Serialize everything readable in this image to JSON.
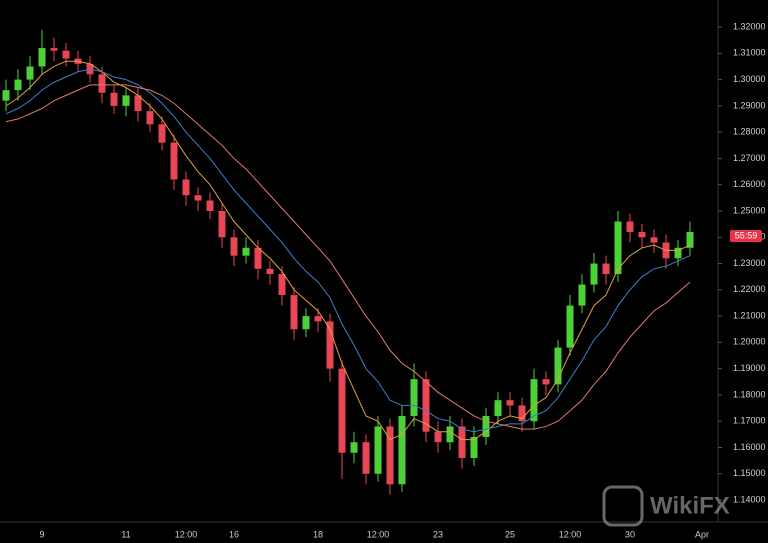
{
  "chart_data": {
    "type": "candlestick",
    "categories": [
      null,
      null,
      null,
      "9",
      null,
      null,
      null,
      null,
      null,
      null,
      "11",
      null,
      null,
      null,
      null,
      "12:00",
      null,
      null,
      null,
      "16",
      null,
      null,
      null,
      null,
      null,
      null,
      "18",
      null,
      null,
      null,
      null,
      "12:00",
      null,
      null,
      null,
      null,
      "23",
      null,
      null,
      null,
      null,
      null,
      "25",
      null,
      null,
      null,
      null,
      "12:00",
      null,
      null,
      null,
      null,
      "30",
      null,
      null,
      null,
      null,
      null,
      "Apr"
    ],
    "open": [
      1.292,
      1.296,
      1.3,
      1.305,
      1.312,
      1.311,
      1.308,
      1.306,
      1.302,
      1.295,
      1.29,
      1.294,
      1.288,
      1.283,
      1.276,
      1.262,
      1.256,
      1.254,
      1.25,
      1.24,
      1.233,
      1.236,
      1.228,
      1.226,
      1.218,
      1.205,
      1.21,
      1.208,
      1.19,
      1.158,
      1.162,
      1.15,
      1.168,
      1.146,
      1.172,
      1.186,
      1.166,
      1.162,
      1.168,
      1.156,
      1.164,
      1.172,
      1.178,
      1.176,
      1.17,
      1.186,
      1.184,
      1.198,
      1.214,
      1.222,
      1.23,
      1.226,
      1.246,
      1.242,
      1.24,
      1.238,
      1.232,
      1.236,
      null
    ],
    "high": [
      1.3,
      1.304,
      1.309,
      1.319,
      1.316,
      1.314,
      1.311,
      1.309,
      1.305,
      1.298,
      1.297,
      1.297,
      1.291,
      1.286,
      1.279,
      1.265,
      1.259,
      1.257,
      1.253,
      1.243,
      1.24,
      1.239,
      1.231,
      1.229,
      1.221,
      1.213,
      1.213,
      1.211,
      1.193,
      1.166,
      1.165,
      1.172,
      1.171,
      1.176,
      1.192,
      1.189,
      1.17,
      1.172,
      1.171,
      1.168,
      1.175,
      1.181,
      1.181,
      1.179,
      1.19,
      1.189,
      1.201,
      1.218,
      1.226,
      1.234,
      1.233,
      1.25,
      1.249,
      1.245,
      1.243,
      1.241,
      1.239,
      1.246,
      null
    ],
    "low": [
      1.288,
      1.292,
      1.296,
      1.302,
      1.307,
      1.305,
      1.303,
      1.299,
      1.291,
      1.287,
      1.286,
      1.284,
      1.28,
      1.273,
      1.258,
      1.252,
      1.25,
      1.247,
      1.236,
      1.229,
      1.23,
      1.224,
      1.222,
      1.214,
      1.201,
      1.202,
      1.204,
      1.185,
      1.148,
      1.154,
      1.146,
      1.147,
      1.142,
      1.143,
      1.168,
      1.162,
      1.158,
      1.159,
      1.152,
      1.153,
      1.161,
      1.169,
      1.172,
      1.166,
      1.167,
      1.18,
      1.181,
      1.195,
      1.211,
      1.219,
      1.222,
      1.223,
      1.238,
      1.236,
      1.234,
      1.228,
      1.229,
      1.233,
      null
    ],
    "close": [
      1.296,
      1.3,
      1.305,
      1.312,
      1.311,
      1.308,
      1.306,
      1.302,
      1.295,
      1.29,
      1.294,
      1.288,
      1.283,
      1.276,
      1.262,
      1.256,
      1.254,
      1.25,
      1.24,
      1.233,
      1.236,
      1.228,
      1.226,
      1.218,
      1.205,
      1.21,
      1.208,
      1.19,
      1.158,
      1.162,
      1.15,
      1.168,
      1.146,
      1.172,
      1.186,
      1.166,
      1.162,
      1.168,
      1.156,
      1.164,
      1.172,
      1.178,
      1.176,
      1.17,
      1.186,
      1.184,
      1.198,
      1.214,
      1.222,
      1.23,
      1.226,
      1.246,
      1.242,
      1.24,
      1.238,
      1.232,
      1.236,
      1.242,
      null
    ],
    "up_color": "#4cd137",
    "down_color": "#e84557",
    "series": [
      {
        "color": "#e0a040",
        "values": [
          1.29,
          1.293,
          1.297,
          1.302,
          1.305,
          1.307,
          1.307,
          1.306,
          1.303,
          1.299,
          1.297,
          1.294,
          1.29,
          1.285,
          1.278,
          1.271,
          1.265,
          1.26,
          1.253,
          1.246,
          1.241,
          1.236,
          1.232,
          1.227,
          1.22,
          1.216,
          1.212,
          1.205,
          1.192,
          1.182,
          1.172,
          1.17,
          1.163,
          1.165,
          1.171,
          1.169,
          1.166,
          1.166,
          1.163,
          1.163,
          1.166,
          1.17,
          1.172,
          1.171,
          1.176,
          1.179,
          1.186,
          1.196,
          1.205,
          1.214,
          1.218,
          1.228,
          1.233,
          1.236,
          1.237,
          1.235,
          1.235,
          1.237,
          null
        ]
      },
      {
        "color": "#3d7fc4",
        "values": [
          1.287,
          1.289,
          1.292,
          1.296,
          1.299,
          1.301,
          1.303,
          1.304,
          1.303,
          1.301,
          1.3,
          1.298,
          1.295,
          1.291,
          1.286,
          1.28,
          1.275,
          1.27,
          1.264,
          1.258,
          1.253,
          1.248,
          1.243,
          1.238,
          1.232,
          1.227,
          1.223,
          1.217,
          1.207,
          1.199,
          1.19,
          1.185,
          1.178,
          1.176,
          1.176,
          1.174,
          1.171,
          1.17,
          1.167,
          1.166,
          1.167,
          1.168,
          1.169,
          1.169,
          1.172,
          1.174,
          1.179,
          1.186,
          1.193,
          1.201,
          1.206,
          1.214,
          1.22,
          1.225,
          1.228,
          1.229,
          1.231,
          1.233,
          null
        ]
      },
      {
        "color": "#e07a6a",
        "values": [
          1.284,
          1.285,
          1.287,
          1.289,
          1.292,
          1.294,
          1.296,
          1.298,
          1.298,
          1.298,
          1.298,
          1.297,
          1.296,
          1.294,
          1.291,
          1.287,
          1.283,
          1.279,
          1.275,
          1.27,
          1.266,
          1.261,
          1.256,
          1.251,
          1.246,
          1.241,
          1.236,
          1.231,
          1.224,
          1.217,
          1.21,
          1.204,
          1.197,
          1.192,
          1.189,
          1.185,
          1.181,
          1.178,
          1.175,
          1.172,
          1.17,
          1.169,
          1.168,
          1.167,
          1.167,
          1.168,
          1.17,
          1.174,
          1.178,
          1.184,
          1.189,
          1.196,
          1.202,
          1.207,
          1.212,
          1.215,
          1.219,
          1.223,
          null
        ]
      }
    ],
    "ylim": [
      1.1324,
      1.3303
    ],
    "yticks": [
      {
        "value": 1.14,
        "label": "1.14000"
      },
      {
        "value": 1.15,
        "label": "1.15000"
      },
      {
        "value": 1.16,
        "label": "1.16000"
      },
      {
        "value": 1.17,
        "label": "1.17000"
      },
      {
        "value": 1.18,
        "label": "1.18000"
      },
      {
        "value": 1.19,
        "label": "1.19000"
      },
      {
        "value": 1.2,
        "label": "1.20000"
      },
      {
        "value": 1.21,
        "label": "1.21000"
      },
      {
        "value": 1.22,
        "label": "1.22000"
      },
      {
        "value": 1.23,
        "label": "1.23000"
      },
      {
        "value": 1.24,
        "label": "1.24000"
      },
      {
        "value": 1.25,
        "label": "1.25000"
      },
      {
        "value": 1.26,
        "label": "1.26000"
      },
      {
        "value": 1.27,
        "label": "1.27000"
      },
      {
        "value": 1.28,
        "label": "1.28000"
      },
      {
        "value": 1.29,
        "label": "1.29000"
      },
      {
        "value": 1.3,
        "label": "1.30000"
      },
      {
        "value": 1.31,
        "label": "1.31000"
      },
      {
        "value": 1.32,
        "label": "1.32000"
      }
    ],
    "price_marker": {
      "value": 1.2405,
      "label": "55:59"
    },
    "watermark": "WikiFX"
  }
}
